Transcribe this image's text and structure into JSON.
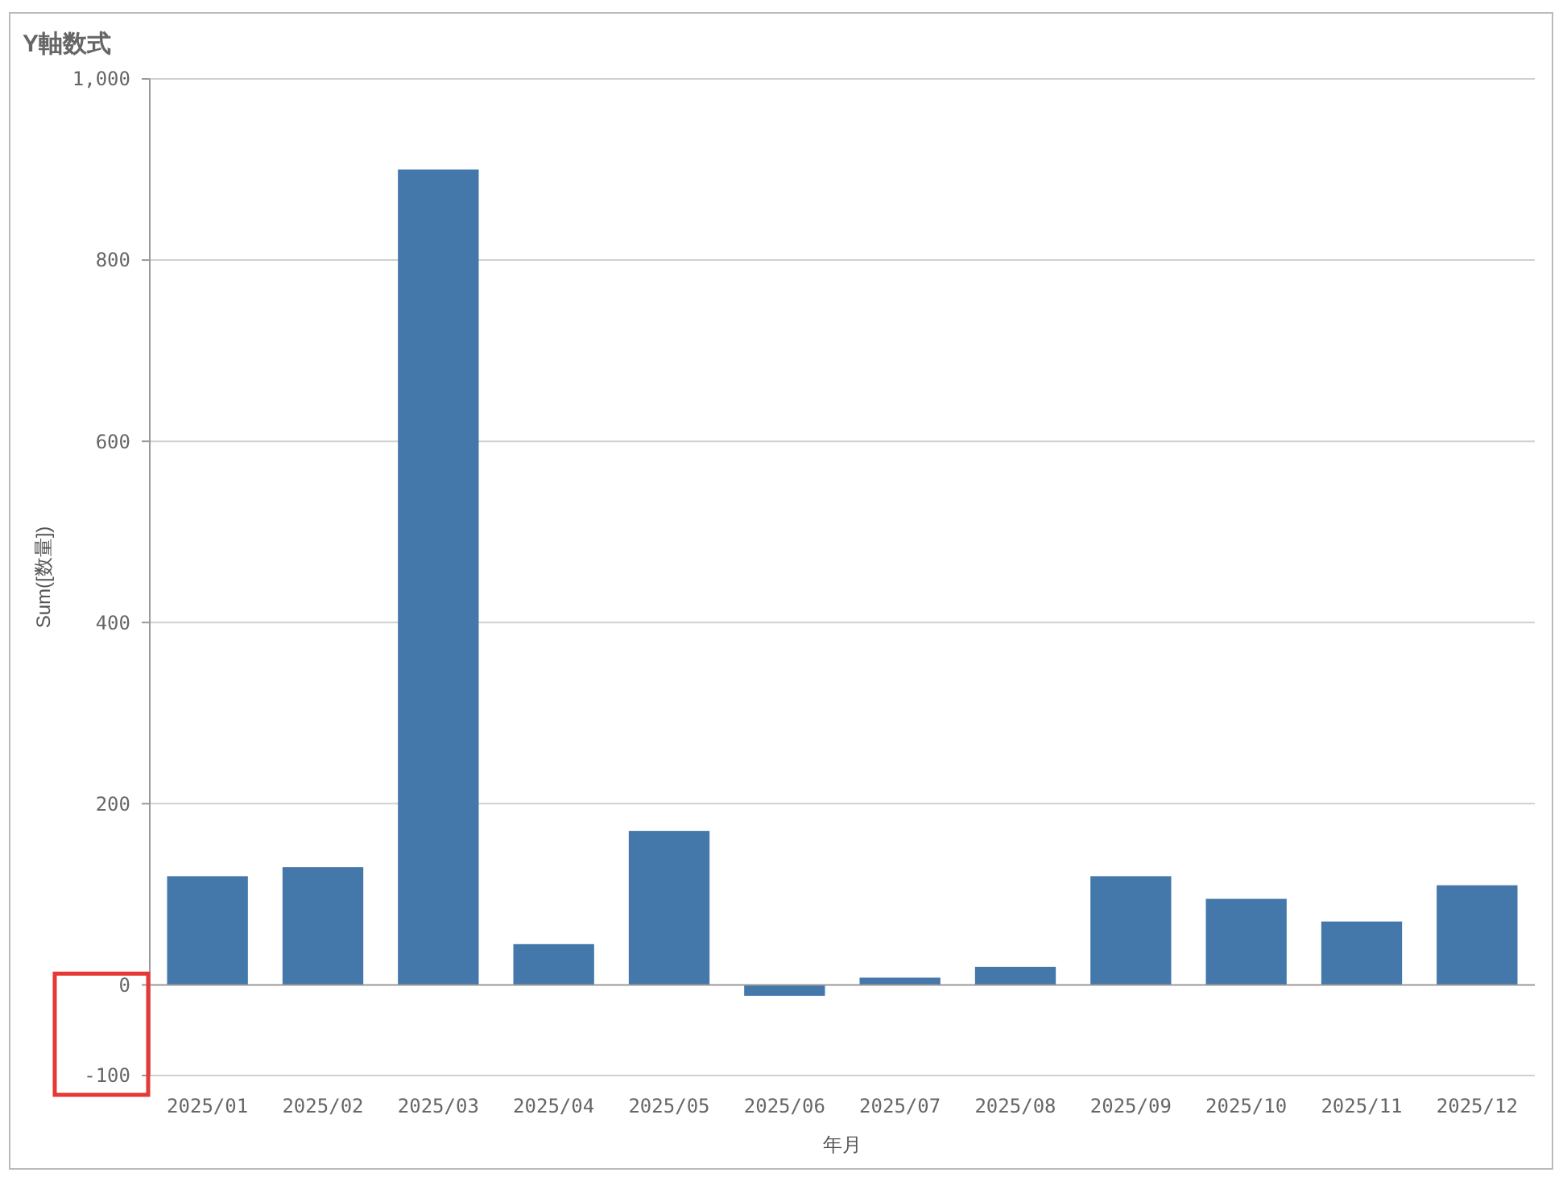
{
  "chart_data": {
    "type": "bar",
    "title": "Y軸数式",
    "xlabel": "年月",
    "ylabel": "Sum([数量])",
    "categories": [
      "2025/01",
      "2025/02",
      "2025/03",
      "2025/04",
      "2025/05",
      "2025/06",
      "2025/07",
      "2025/08",
      "2025/09",
      "2025/10",
      "2025/11",
      "2025/12"
    ],
    "values": [
      120,
      130,
      900,
      45,
      170,
      -12,
      8,
      20,
      120,
      95,
      70,
      110
    ],
    "color": "#4477aa",
    "ylim": [
      -100,
      1000
    ],
    "yticks": [
      -100,
      0,
      200,
      400,
      600,
      800,
      {
        "value": 1000,
        "label": "1,000"
      }
    ],
    "grid": "y"
  }
}
